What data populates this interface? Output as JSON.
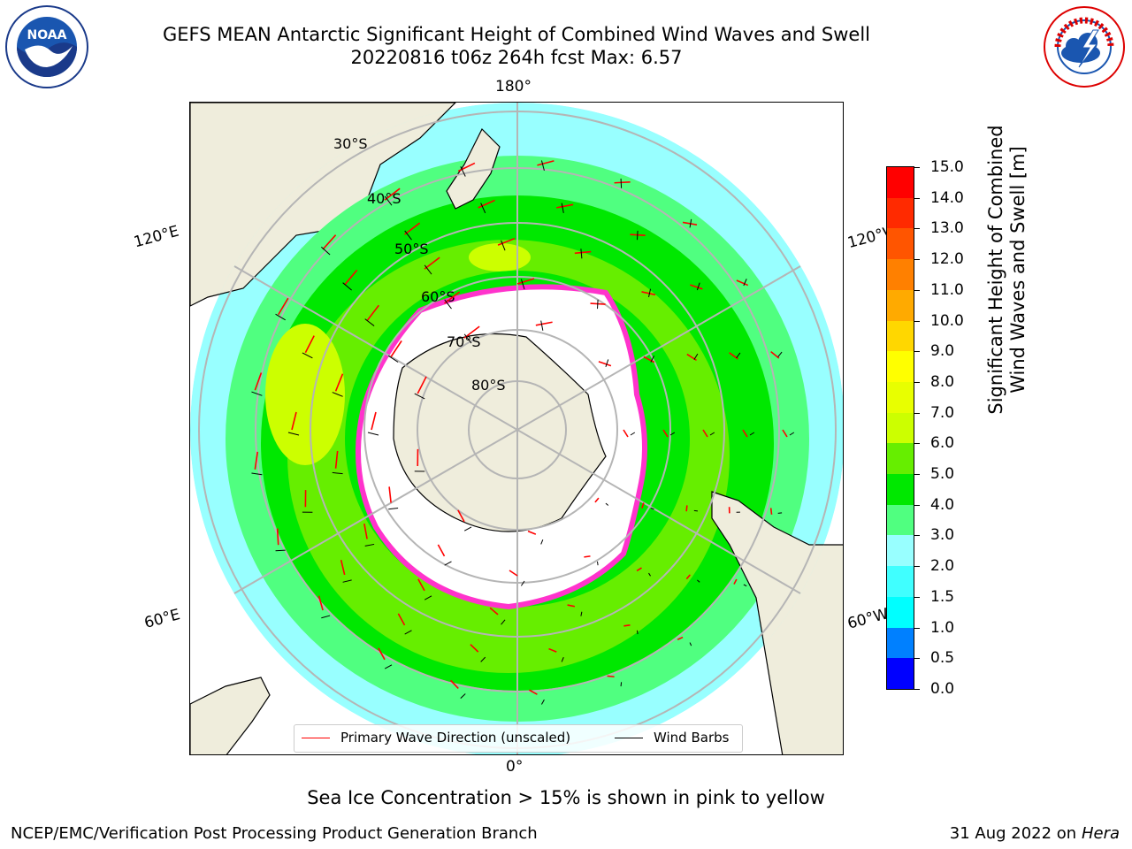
{
  "header": {
    "title_line1": "GEFS MEAN Antarctic Significant Height of Combined Wind Waves and Swell",
    "title_line2": "20220816 t06z 264h fcst   Max: 6.57"
  },
  "logos": {
    "left": "noaa-logo",
    "right": "national-weather-service-logo"
  },
  "map": {
    "longitude_labels": {
      "top": "180°",
      "bottom": "0°",
      "upper_left": "120°E",
      "lower_left": "60°E",
      "upper_right": "120°W",
      "lower_right": "60°W"
    },
    "latitude_labels": [
      "30°S",
      "40°S",
      "50°S",
      "60°S",
      "70°S",
      "80°S"
    ],
    "legend": {
      "wave_label": "Primary Wave Direction (unscaled)",
      "wind_label": "Wind Barbs",
      "wave_color": "#ff0000",
      "wind_color": "#000000"
    }
  },
  "colorbar": {
    "label_line1": "Significant Height of Combined",
    "label_line2": "Wind Waves and Swell [m]",
    "ticks": [
      "0.0",
      "0.5",
      "1.0",
      "1.5",
      "2.0",
      "3.0",
      "4.0",
      "5.0",
      "6.0",
      "7.0",
      "8.0",
      "9.0",
      "10.0",
      "11.0",
      "12.0",
      "13.0",
      "14.0",
      "15.0"
    ],
    "colors": [
      "#0000ff",
      "#0080ff",
      "#00ffff",
      "#40ffff",
      "#98ffff",
      "#50ff80",
      "#00e800",
      "#66ee00",
      "#ccff00",
      "#e8ff00",
      "#ffff00",
      "#ffd700",
      "#ffaa00",
      "#ff8000",
      "#ff5500",
      "#ff2a00",
      "#ff0000"
    ]
  },
  "note": "Sea Ice Concentration > 15% is shown in pink to yellow",
  "footer": {
    "left": "NCEP/EMC/Verification Post Processing Product Generation Branch",
    "right_date": "31 Aug 2022 on",
    "right_host": "Hera"
  }
}
